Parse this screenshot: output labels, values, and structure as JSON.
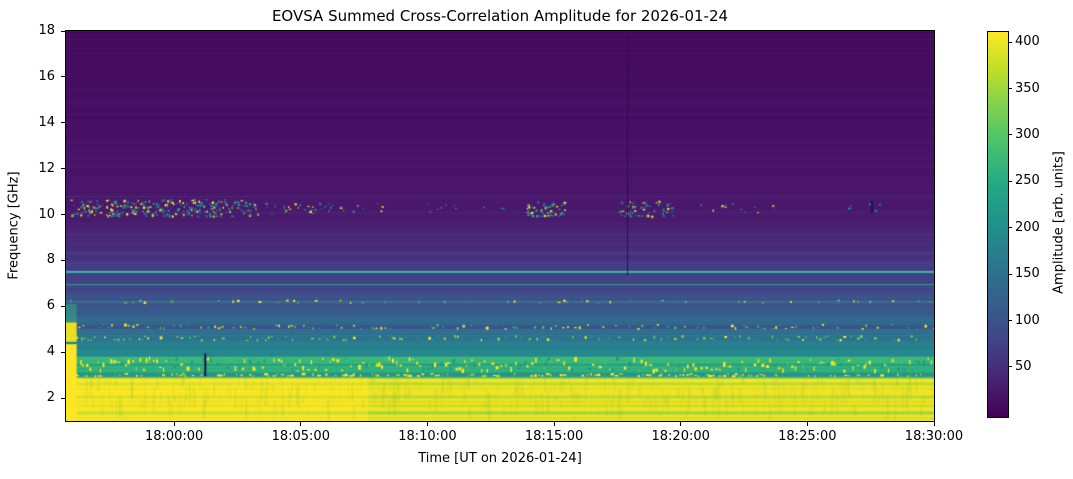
{
  "figure": {
    "title": "EOVSA Summed Cross-Correlation Amplitude for 2026-01-24",
    "background_color": "#ffffff"
  },
  "chart_data": {
    "type": "heatmap",
    "title": "EOVSA Summed Cross-Correlation Amplitude for 2026-01-24",
    "xlabel": "Time [UT on 2026-01-24]",
    "ylabel": "Frequency [GHz]",
    "colorbar_label": "Amplitude [arb. units]",
    "colormap": "viridis",
    "grid": false,
    "x_tick_labels": [
      "18:00:00",
      "18:05:00",
      "18:10:00",
      "18:15:00",
      "18:20:00",
      "18:25:00",
      "18:30:00"
    ],
    "x_tick_minutes": [
      0,
      5,
      10,
      15,
      20,
      25,
      30
    ],
    "t_range_min": [
      -4.27,
      30
    ],
    "y_range_ghz": [
      1,
      18
    ],
    "y_ticks": [
      2,
      4,
      6,
      8,
      10,
      12,
      14,
      16,
      18
    ],
    "colorbar_ticks": [
      50,
      100,
      150,
      200,
      250,
      300,
      350,
      400
    ],
    "colorbar_value_range": [
      -4,
      411
    ],
    "colormap_stops": [
      [
        0.0,
        "#440154"
      ],
      [
        0.1,
        "#482475"
      ],
      [
        0.2,
        "#414487"
      ],
      [
        0.3,
        "#355f8d"
      ],
      [
        0.4,
        "#2a788e"
      ],
      [
        0.5,
        "#21918c"
      ],
      [
        0.6,
        "#22a884"
      ],
      [
        0.7,
        "#44bf70"
      ],
      [
        0.8,
        "#7ad151"
      ],
      [
        0.9,
        "#bddf26"
      ],
      [
        1.0,
        "#fde725"
      ]
    ],
    "bands": [
      {
        "f1": 18.0,
        "f0": 14.0,
        "top": "#43095c",
        "bot": "#460e62"
      },
      {
        "f1": 14.0,
        "f0": 10.8,
        "top": "#470f64",
        "bot": "#471468"
      },
      {
        "f1": 10.8,
        "f0": 9.4,
        "top": "#48156b",
        "bot": "#481b6e"
      },
      {
        "f1": 9.4,
        "f0": 8.0,
        "top": "#482373",
        "bot": "#46307c"
      },
      {
        "f1": 8.0,
        "f0": 6.6,
        "top": "#443983",
        "bot": "#3f4587"
      },
      {
        "f1": 6.6,
        "f0": 5.6,
        "top": "#3d4e8a",
        "bot": "#375a8c"
      },
      {
        "f1": 5.6,
        "f0": 4.75,
        "top": "#33628d",
        "bot": "#2d6f8e"
      },
      {
        "f1": 4.75,
        "f0": 3.8,
        "top": "#2a768e",
        "bot": "#23888e"
      },
      {
        "f1": 3.8,
        "f0": 3.1,
        "top": "#3dbc74",
        "bot": "#2ab07f"
      },
      {
        "f1": 3.1,
        "f0": 2.85,
        "top": "#27898e",
        "bot": "#56c667"
      },
      {
        "f1": 2.85,
        "f0": 1.0,
        "top": "#fde725",
        "bot": "#f9e622"
      }
    ],
    "hlines": [
      {
        "f": 16.85,
        "c": "#4d1472",
        "px": 1,
        "a": 0.55
      },
      {
        "f": 15.9,
        "c": "#4d1472",
        "px": 1,
        "a": 0.4
      },
      {
        "f": 14.85,
        "c": "#4e1776",
        "px": 1,
        "a": 0.5
      },
      {
        "f": 13.85,
        "c": "#4e1b78",
        "px": 1,
        "a": 0.45
      },
      {
        "f": 12.9,
        "c": "#4e1b78",
        "px": 1,
        "a": 0.5
      },
      {
        "f": 12.15,
        "c": "#4f1f7a",
        "px": 1,
        "a": 0.45
      },
      {
        "f": 11.45,
        "c": "#4f237c",
        "px": 1,
        "a": 0.45
      },
      {
        "f": 10.75,
        "c": "#50287e",
        "px": 1,
        "a": 0.55
      },
      {
        "f": 10.1,
        "c": "#4f2c80",
        "px": 1,
        "a": 0.4
      },
      {
        "f": 9.55,
        "c": "#4e3383",
        "px": 1,
        "a": 0.5
      },
      {
        "f": 9.15,
        "c": "#4c3a85",
        "px": 1,
        "a": 0.55
      },
      {
        "f": 8.75,
        "c": "#4a4186",
        "px": 1,
        "a": 0.5
      },
      {
        "f": 8.3,
        "c": "#475088",
        "px": 2,
        "a": 0.6
      },
      {
        "f": 7.5,
        "c": "#3bbca5",
        "px": 2,
        "a": 1
      },
      {
        "f": 6.95,
        "c": "#2ba38d",
        "px": 1,
        "a": 0.85
      },
      {
        "f": 6.45,
        "c": "#3a5f8c",
        "px": 1,
        "a": 0.6
      },
      {
        "f": 6.2,
        "c": "#3f748e",
        "px": 2,
        "a": 0.75
      },
      {
        "f": 5.85,
        "c": "#38608d",
        "px": 1,
        "a": 0.6
      },
      {
        "f": 5.4,
        "c": "#30718e",
        "px": 2,
        "a": 0.7
      },
      {
        "f": 5.1,
        "c": "#3b548b",
        "px": 4,
        "a": 1
      },
      {
        "f": 4.6,
        "c": "#2d718e",
        "px": 4,
        "a": 1
      },
      {
        "f": 4.3,
        "c": "#24898e",
        "px": 1,
        "a": 0.7
      },
      {
        "f": 4.05,
        "c": "#1fa088",
        "px": 1,
        "a": 0.6
      },
      {
        "f": 3.45,
        "c": "#21918c",
        "px": 2,
        "a": 0.7
      },
      {
        "f": 3.0,
        "c": "#28938d",
        "px": 3,
        "a": 1
      },
      {
        "f": 2.62,
        "c": "#addc30",
        "px": 3,
        "a": 0.8
      },
      {
        "f": 2.4,
        "c": "#d6e21a",
        "px": 2,
        "a": 0.6
      },
      {
        "f": 2.05,
        "c": "#a8db34",
        "px": 3,
        "a": 0.8
      },
      {
        "f": 1.85,
        "c": "#cfe11c",
        "px": 2,
        "a": 0.5
      },
      {
        "f": 1.65,
        "c": "#b8de29",
        "px": 2,
        "a": 0.7
      },
      {
        "f": 1.35,
        "c": "#8bd646",
        "px": 3,
        "a": 0.85
      },
      {
        "f": 1.12,
        "c": "#cbe11e",
        "px": 2,
        "a": 0.6
      }
    ],
    "yellow_overlays": [
      {
        "t0": -4.27,
        "t1": 7.67,
        "f0": 1.0,
        "f1": 2.88,
        "c": "#fde725",
        "a": 0.45
      },
      {
        "t0": 7.67,
        "t1": 30,
        "f0": 1.0,
        "f1": 2.88,
        "c": "#aacd2d",
        "a": 0.1
      }
    ],
    "speckle_rows": [
      {
        "f": 6.2,
        "hw": 0.05,
        "density": 0.22,
        "wmax": 2,
        "hmax": 1.5,
        "colors": [
          "#40bd72",
          "#fde725",
          "#27808e"
        ]
      },
      {
        "f": 5.1,
        "hw": 0.09,
        "density": 0.42,
        "wmax": 2,
        "hmax": 2,
        "colors": [
          "#fde725",
          "#44bf70",
          "#21918c",
          "#d8e219"
        ]
      },
      {
        "f": 4.6,
        "hw": 0.09,
        "density": 0.5,
        "wmax": 2,
        "hmax": 2,
        "colors": [
          "#fde725",
          "#44bf70",
          "#7ad151",
          "#21918c"
        ]
      },
      {
        "f": 3.45,
        "hw": 0.28,
        "density": 0.95,
        "wmax": 2,
        "hmax": 4,
        "colors": [
          "#fde725",
          "#e5e419",
          "#44bf70",
          "#21918c",
          "#fde725"
        ]
      },
      {
        "f": 3.0,
        "hw": 0.05,
        "density": 0.5,
        "wmax": 3,
        "hmax": 1.5,
        "colors": [
          "#fde725",
          "#bddf26"
        ]
      }
    ],
    "speckle_clusters": [
      {
        "t0": -4.1,
        "t1": 3.3,
        "f0": 9.95,
        "f1": 10.68,
        "n": 300,
        "colors": [
          "#fde725",
          "#21918c",
          "#355f8d",
          "#2ab07f"
        ]
      },
      {
        "t0": 3.3,
        "t1": 8.6,
        "f0": 10.05,
        "f1": 10.55,
        "n": 40,
        "colors": [
          "#fde725",
          "#21918c",
          "#355f8d"
        ]
      },
      {
        "t0": 8.6,
        "t1": 13.6,
        "f0": 10.05,
        "f1": 10.5,
        "n": 10,
        "colors": [
          "#21918c",
          "#355f8d"
        ]
      },
      {
        "t0": 13.9,
        "t1": 15.5,
        "f0": 9.95,
        "f1": 10.6,
        "n": 60,
        "colors": [
          "#fde725",
          "#21918c",
          "#355f8d",
          "#2ab07f"
        ]
      },
      {
        "t0": 17.5,
        "t1": 19.7,
        "f0": 9.95,
        "f1": 10.6,
        "n": 65,
        "colors": [
          "#fde725",
          "#21918c",
          "#355f8d",
          "#2ab07f"
        ]
      },
      {
        "t0": 20.5,
        "t1": 24.5,
        "f0": 10.1,
        "f1": 10.5,
        "n": 12,
        "colors": [
          "#21918c",
          "#355f8d",
          "#fde725"
        ]
      },
      {
        "t0": 26.5,
        "t1": 28.5,
        "f0": 10.15,
        "f1": 10.5,
        "n": 6,
        "colors": [
          "#21918c",
          "#355f8d"
        ]
      }
    ],
    "vlines": [
      {
        "t": 1.23,
        "f0": 2.95,
        "f1": 3.95,
        "c": "#1d1147",
        "w": 2,
        "a": 1
      },
      {
        "t": 17.9,
        "f0": 7.35,
        "f1": 17.8,
        "c": "#2c0b54",
        "w": 1,
        "a": 0.9
      },
      {
        "t": 27.55,
        "f0": 10.05,
        "f1": 10.6,
        "c": "#1d1147",
        "w": 2,
        "a": 1
      }
    ],
    "left_edge": {
      "t1": -3.85,
      "features": [
        {
          "f0": 1.0,
          "f1": 4.35,
          "c": "#fde725",
          "a": 1
        },
        {
          "f0": 4.45,
          "f1": 5.3,
          "c": "#f4e61e",
          "a": 0.95
        },
        {
          "f0": 5.3,
          "f1": 6.1,
          "c": "#2fb47c",
          "a": 0.5
        }
      ]
    },
    "yellow_texture": {
      "t0": -3.6,
      "t1": 30,
      "f0": 1.0,
      "f1": 2.9,
      "n": 420
    }
  }
}
